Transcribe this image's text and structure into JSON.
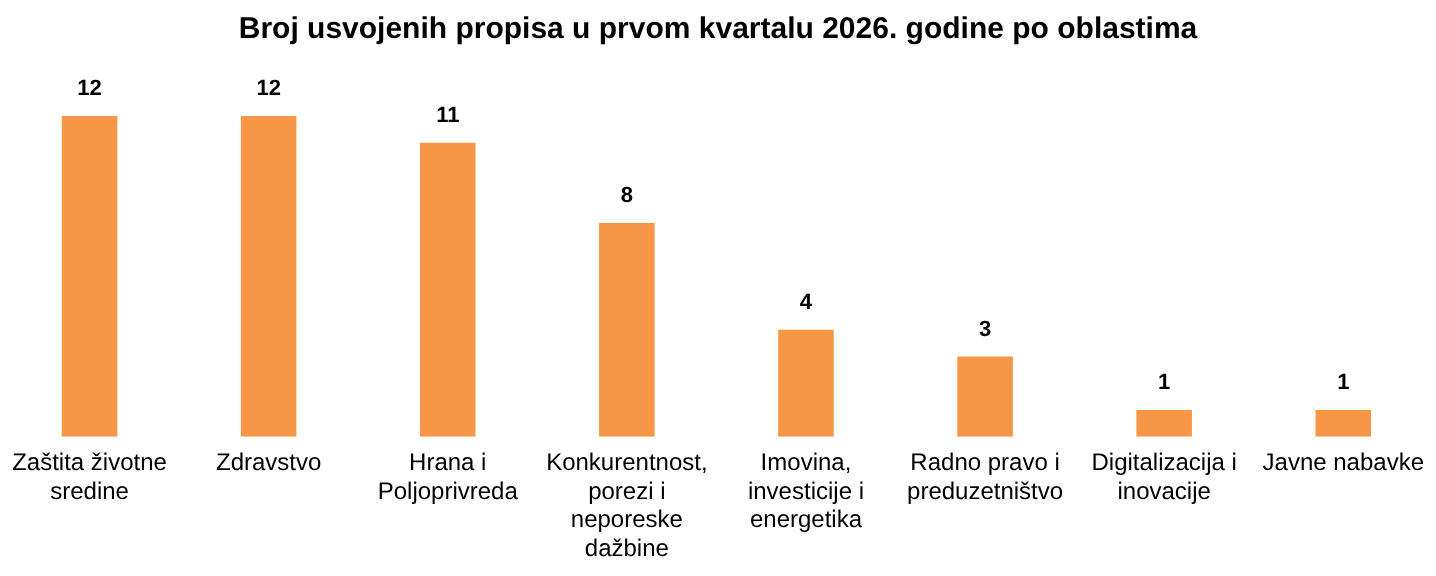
{
  "chart_data": {
    "type": "bar",
    "title": "Broj usvojenih propisa u prvom kvartalu 2026. godine po oblastima",
    "categories": [
      "Zaštita životne sredine",
      "Zdravstvo",
      "Hrana i Poljoprivreda",
      "Konkurentnost, porezi i neporeske dažbine",
      "Imovina, investicije i energetika",
      "Radno pravo i preduzetništvo",
      "Digitalizacija i inovacije",
      "Javne nabavke"
    ],
    "values": [
      12,
      12,
      11,
      8,
      4,
      3,
      1,
      1
    ],
    "color": "#f79646",
    "data_labels": true,
    "legend": false,
    "grid": false
  }
}
